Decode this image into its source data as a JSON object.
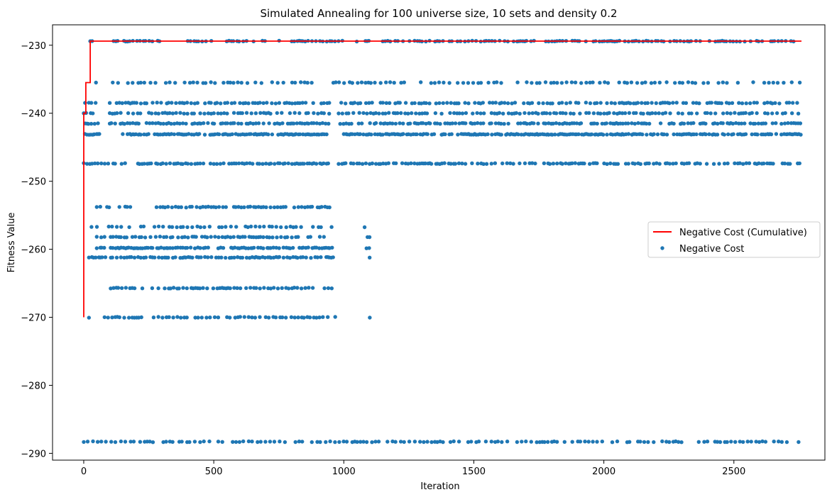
{
  "chart_data": {
    "type": "scatter",
    "title": "Simulated Annealing for 100 universe size, 10 sets and density 0.2",
    "xlabel": "Iteration",
    "ylabel": "Fitness Value",
    "xlim": [
      -120,
      2850
    ],
    "ylim": [
      -291,
      -227
    ],
    "xticks": [
      0,
      500,
      1000,
      1500,
      2000,
      2500
    ],
    "yticks": [
      -230,
      -240,
      -250,
      -260,
      -270,
      -280,
      -290
    ],
    "legend_position": "center-right",
    "grid": false,
    "series": [
      {
        "name": "Negative Cost (Cumulative)",
        "kind": "line",
        "color": "#ff0000",
        "points": [
          [
            0,
            -270.0
          ],
          [
            0,
            -240.0
          ],
          [
            8,
            -240.0
          ],
          [
            8,
            -235.5
          ],
          [
            25,
            -235.5
          ],
          [
            25,
            -229.4
          ],
          [
            2760,
            -229.4
          ]
        ]
      },
      {
        "name": "Negative Cost",
        "kind": "scatter",
        "color": "#1f77b4",
        "levels": [
          {
            "y": -229.4,
            "ranges": [
              [
                25,
                40
              ],
              [
                100,
                300
              ],
              [
                400,
                500
              ],
              [
                550,
                760
              ],
              [
                800,
                1000
              ],
              [
                1050,
                1100
              ],
              [
                1150,
                2760
              ]
            ],
            "step": 11
          },
          {
            "y": -235.5,
            "ranges": [
              [
                15,
                50
              ],
              [
                100,
                900
              ],
              [
                960,
                2760
              ]
            ],
            "step": 16
          },
          {
            "y": -238.5,
            "ranges": [
              [
                5,
                50
              ],
              [
                100,
                950
              ],
              [
                980,
                2760
              ]
            ],
            "step": 12
          },
          {
            "y": -240.0,
            "ranges": [
              [
                0,
                40
              ],
              [
                100,
                950
              ],
              [
                980,
                2760
              ]
            ],
            "step": 13
          },
          {
            "y": -241.5,
            "ranges": [
              [
                0,
                60
              ],
              [
                100,
                950
              ],
              [
                980,
                2760
              ]
            ],
            "step": 9
          },
          {
            "y": -243.1,
            "ranges": [
              [
                0,
                60
              ],
              [
                150,
                950
              ],
              [
                1000,
                2760
              ]
            ],
            "step": 7
          },
          {
            "y": -247.4,
            "ranges": [
              [
                0,
                160
              ],
              [
                200,
                950
              ],
              [
                980,
                2760
              ]
            ],
            "step": 10
          },
          {
            "y": -253.8,
            "ranges": [
              [
                50,
                180
              ],
              [
                280,
                950
              ]
            ],
            "step": 11
          },
          {
            "y": -256.7,
            "ranges": [
              [
                30,
                960
              ],
              [
                1080,
                1100
              ]
            ],
            "step": 15
          },
          {
            "y": -258.2,
            "ranges": [
              [
                50,
                960
              ],
              [
                1080,
                1100
              ]
            ],
            "step": 12
          },
          {
            "y": -259.8,
            "ranges": [
              [
                50,
                960
              ],
              [
                1080,
                1100
              ]
            ],
            "step": 8
          },
          {
            "y": -261.2,
            "ranges": [
              [
                20,
                960
              ],
              [
                1090,
                1100
              ]
            ],
            "step": 9
          },
          {
            "y": -265.7,
            "ranges": [
              [
                90,
                960
              ]
            ],
            "step": 12
          },
          {
            "y": -270.0,
            "ranges": [
              [
                0,
                30
              ],
              [
                80,
                980
              ],
              [
                1100,
                1110
              ]
            ],
            "step": 14
          },
          {
            "y": -288.3,
            "ranges": [
              [
                0,
                2760
              ]
            ],
            "step": 15
          }
        ]
      }
    ]
  }
}
